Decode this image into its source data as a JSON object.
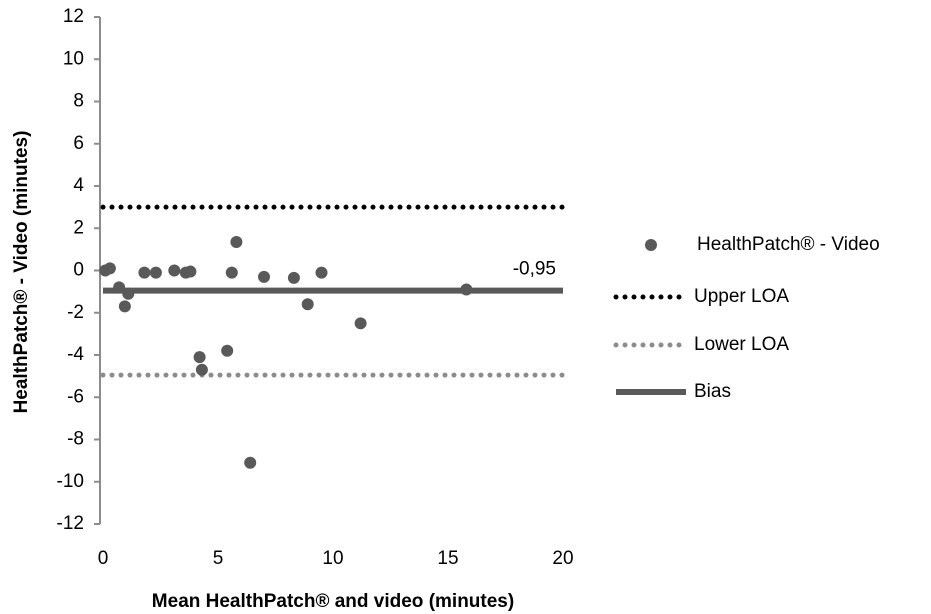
{
  "chart_data": {
    "type": "scatter",
    "x_label": "Mean HealthPatch® and video (minutes)",
    "y_label": "HealthPatch® - Video (minutes)",
    "xlim": [
      0,
      20
    ],
    "xticks": [
      0,
      5,
      10,
      15,
      20
    ],
    "ylim": [
      -12,
      12
    ],
    "yticks": [
      -12,
      -10,
      -8,
      -6,
      -4,
      -2,
      0,
      2,
      4,
      6,
      8,
      10,
      12
    ],
    "grid": false,
    "legend": "right",
    "series": [
      {
        "name": "HealthPatch® - Video",
        "color": "#595959",
        "x": [
          0.1,
          0.3,
          0.7,
          0.95,
          1.1,
          1.8,
          2.3,
          3.1,
          3.6,
          3.8,
          4.2,
          4.3,
          5.4,
          5.6,
          5.8,
          6.4,
          7.0,
          8.3,
          8.9,
          9.5,
          11.2,
          15.8
        ],
        "values": [
          0.0,
          0.1,
          -0.8,
          -1.7,
          -1.1,
          -0.1,
          -0.1,
          0.0,
          -0.1,
          -0.05,
          -4.1,
          -4.7,
          -3.8,
          -0.1,
          1.35,
          -9.1,
          -0.3,
          -0.35,
          -1.6,
          -0.1,
          -2.5,
          -0.9
        ]
      }
    ],
    "reference_lines": [
      {
        "name": "Upper LOA",
        "color": "#000000",
        "style": "dotted",
        "value": 3.0
      },
      {
        "name": "Lower LOA",
        "color": "#8c8c8c",
        "style": "dotted",
        "value": -4.95
      },
      {
        "name": "Bias",
        "color": "#595959",
        "style": "solid",
        "value": -0.95,
        "value_label": "-0,95"
      }
    ]
  }
}
